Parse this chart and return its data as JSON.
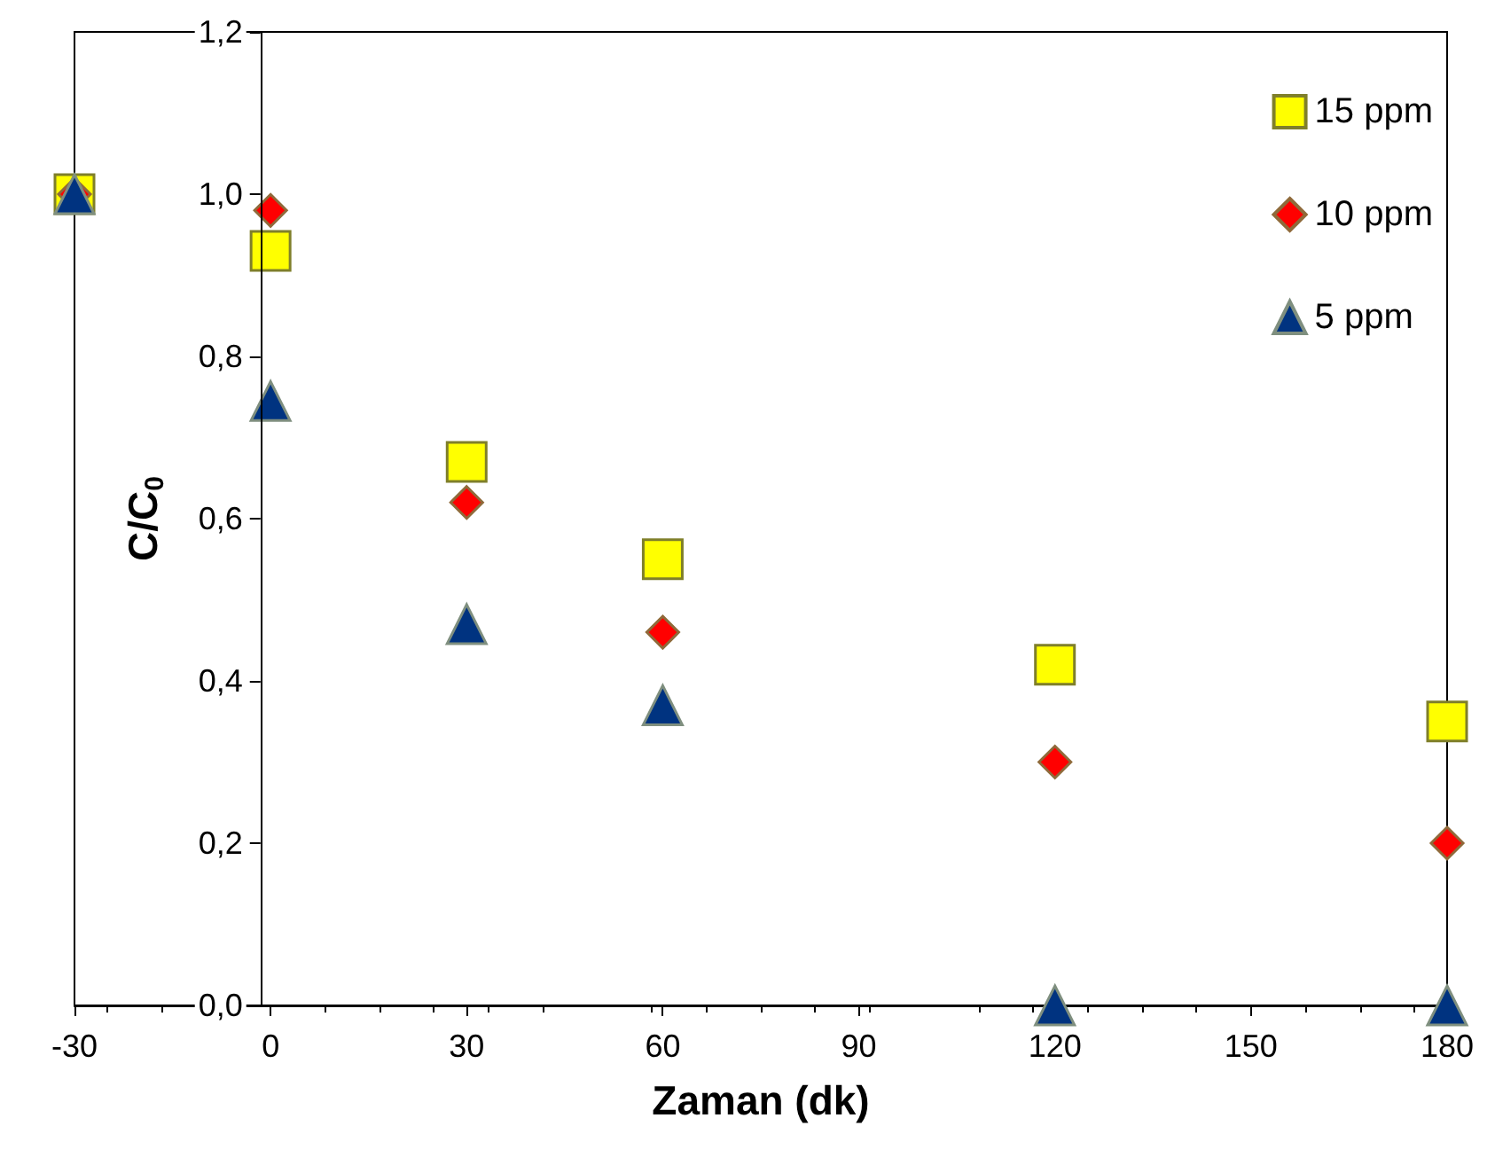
{
  "chart_data": {
    "type": "scatter",
    "xlabel": "Zaman (dk)",
    "ylabel": "C/C$_{0}$",
    "x": [
      -30,
      0,
      30,
      60,
      120,
      180
    ],
    "series": [
      {
        "name": "15 ppm",
        "color": "#ffff00",
        "marker": "square",
        "values": [
          1.0,
          0.93,
          0.67,
          0.55,
          0.42,
          0.35
        ]
      },
      {
        "name": "10 ppm",
        "color": "#ff0000",
        "marker": "diamond",
        "values": [
          1.0,
          0.98,
          0.62,
          0.46,
          0.3,
          0.2
        ]
      },
      {
        "name": "5 ppm",
        "color": "#003380",
        "marker": "triangle",
        "values": [
          1.0,
          0.745,
          0.47,
          0.37,
          0,
          0
        ]
      }
    ],
    "xlim": [
      -30,
      180
    ],
    "xticks": [
      -30,
      0,
      30,
      60,
      90,
      120,
      150,
      180
    ],
    "ylim": [
      0,
      1.2
    ],
    "yticks": [
      {
        "value": 0,
        "label": "0,0"
      },
      {
        "value": 0.2,
        "label": "0,2"
      },
      {
        "value": 0.4,
        "label": "0,4"
      },
      {
        "value": 0.6,
        "label": "0,6"
      },
      {
        "value": 0.8,
        "label": "0,8"
      },
      {
        "value": 1.0,
        "label": "1,0"
      },
      {
        "value": 1.2,
        "label": "1,2"
      }
    ],
    "grid": false,
    "legend": "top right"
  }
}
